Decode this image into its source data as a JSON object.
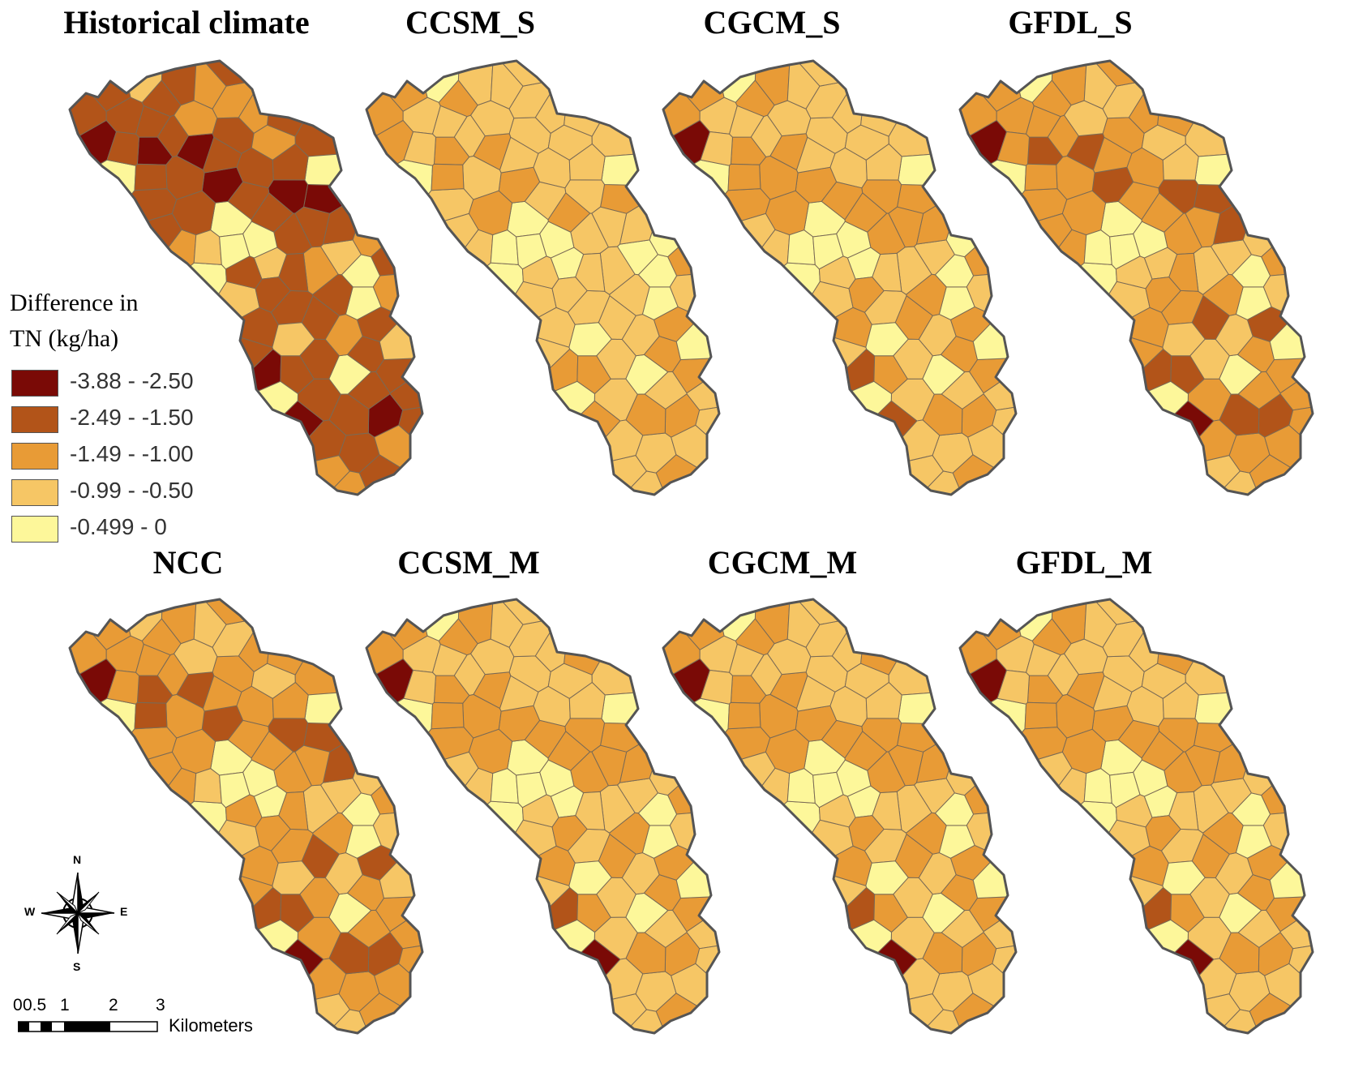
{
  "figure": {
    "panels": [
      {
        "title": "Historical climate",
        "classes": [
          0,
          1,
          0,
          1,
          0,
          2,
          1,
          0,
          1,
          0,
          1,
          4,
          4,
          2,
          3,
          1,
          3,
          4,
          4,
          3,
          0,
          1,
          0,
          1,
          1,
          0,
          1,
          2,
          1,
          2,
          4,
          1,
          1,
          2,
          1,
          1,
          4,
          2,
          1,
          1,
          2,
          1,
          1,
          1,
          1,
          1,
          1,
          1,
          0,
          1,
          2,
          3,
          1,
          3,
          4,
          2,
          3,
          4,
          4,
          1,
          1,
          1,
          2,
          1,
          2,
          2,
          4,
          3,
          1,
          1,
          1,
          1,
          1,
          1,
          1,
          1,
          1,
          1,
          1,
          1,
          1,
          1,
          2,
          1,
          1,
          1
        ]
      },
      {
        "title": "CCSM_S",
        "classes": [
          2,
          3,
          2,
          3,
          2,
          3,
          3,
          2,
          3,
          3,
          3,
          4,
          4,
          3,
          3,
          3,
          4,
          4,
          4,
          4,
          2,
          2,
          2,
          3,
          2,
          2,
          2,
          3,
          3,
          3,
          4,
          3,
          2,
          3,
          3,
          3,
          4,
          3,
          2,
          3,
          3,
          2,
          2,
          2,
          2,
          2,
          2,
          2,
          2,
          3,
          3,
          4,
          3,
          4,
          4,
          4,
          4,
          4,
          4,
          3,
          3,
          3,
          3,
          3,
          3,
          3,
          4,
          4,
          3,
          3,
          3,
          3,
          3,
          3,
          3,
          3,
          3,
          3,
          2,
          3,
          3,
          3,
          3,
          3,
          3,
          3
        ]
      },
      {
        "title": "CGCM_S",
        "classes": [
          2,
          3,
          1,
          3,
          2,
          3,
          3,
          1,
          3,
          2,
          3,
          4,
          4,
          3,
          3,
          3,
          4,
          4,
          4,
          3,
          0,
          2,
          2,
          2,
          2,
          2,
          2,
          3,
          2,
          3,
          4,
          2,
          2,
          3,
          2,
          2,
          4,
          3,
          2,
          2,
          3,
          2,
          2,
          2,
          2,
          2,
          2,
          2,
          2,
          2,
          3,
          4,
          3,
          4,
          4,
          4,
          4,
          4,
          4,
          3,
          2,
          3,
          3,
          3,
          3,
          3,
          4,
          4,
          2,
          3,
          2,
          3,
          3,
          3,
          3,
          3,
          3,
          3,
          2,
          2,
          3,
          3,
          3,
          3,
          3,
          3
        ]
      },
      {
        "title": "GFDL_S",
        "classes": [
          1,
          2,
          1,
          2,
          1,
          3,
          2,
          0,
          2,
          1,
          2,
          4,
          4,
          3,
          3,
          2,
          3,
          4,
          4,
          3,
          0,
          1,
          1,
          1,
          1,
          1,
          1,
          2,
          1,
          2,
          4,
          2,
          2,
          3,
          2,
          2,
          4,
          3,
          2,
          2,
          3,
          2,
          2,
          2,
          2,
          2,
          2,
          2,
          1,
          2,
          3,
          4,
          3,
          4,
          4,
          3,
          3,
          4,
          4,
          2,
          2,
          3,
          3,
          3,
          3,
          3,
          4,
          4,
          2,
          2,
          2,
          2,
          2,
          2,
          2,
          2,
          2,
          2,
          2,
          2,
          2,
          3,
          2,
          2,
          2,
          2
        ]
      },
      {
        "title": "NCC",
        "classes": [
          1,
          2,
          1,
          2,
          1,
          3,
          2,
          0,
          2,
          1,
          2,
          4,
          4,
          3,
          3,
          2,
          4,
          4,
          4,
          3,
          0,
          1,
          1,
          1,
          1,
          1,
          1,
          2,
          1,
          2,
          4,
          2,
          2,
          3,
          2,
          2,
          4,
          3,
          2,
          2,
          3,
          2,
          2,
          2,
          2,
          2,
          2,
          2,
          1,
          2,
          3,
          3,
          2,
          3,
          4,
          3,
          3,
          4,
          4,
          2,
          2,
          2,
          3,
          2,
          3,
          3,
          4,
          3,
          2,
          2,
          2,
          2,
          2,
          2,
          2,
          2,
          2,
          2,
          1,
          2,
          2,
          2,
          2,
          2,
          2,
          2
        ]
      },
      {
        "title": "CCSM_M",
        "classes": [
          2,
          3,
          1,
          3,
          2,
          3,
          3,
          0,
          3,
          2,
          3,
          4,
          4,
          3,
          3,
          3,
          4,
          4,
          4,
          3,
          0,
          2,
          2,
          2,
          2,
          2,
          2,
          3,
          2,
          3,
          4,
          2,
          2,
          3,
          2,
          2,
          4,
          3,
          2,
          2,
          3,
          2,
          2,
          2,
          2,
          2,
          2,
          2,
          2,
          2,
          3,
          4,
          3,
          4,
          4,
          3,
          4,
          4,
          4,
          3,
          2,
          3,
          3,
          3,
          3,
          3,
          4,
          4,
          2,
          2,
          2,
          3,
          3,
          3,
          3,
          3,
          3,
          3,
          2,
          2,
          3,
          3,
          3,
          3,
          3,
          3
        ]
      },
      {
        "title": "CGCM_M",
        "classes": [
          2,
          3,
          1,
          3,
          2,
          3,
          3,
          0,
          3,
          2,
          3,
          4,
          4,
          3,
          3,
          3,
          4,
          4,
          4,
          3,
          0,
          2,
          2,
          2,
          2,
          2,
          2,
          3,
          2,
          3,
          4,
          2,
          2,
          3,
          2,
          2,
          4,
          3,
          2,
          2,
          3,
          2,
          2,
          2,
          2,
          2,
          2,
          2,
          2,
          2,
          3,
          4,
          3,
          4,
          4,
          3,
          4,
          4,
          4,
          3,
          2,
          3,
          3,
          3,
          3,
          3,
          4,
          4,
          2,
          2,
          2,
          3,
          3,
          3,
          3,
          3,
          3,
          3,
          2,
          2,
          3,
          3,
          3,
          3,
          3,
          3
        ]
      },
      {
        "title": "GFDL_M",
        "classes": [
          2,
          3,
          1,
          3,
          2,
          3,
          3,
          0,
          3,
          2,
          3,
          4,
          4,
          3,
          3,
          3,
          4,
          4,
          4,
          3,
          0,
          2,
          2,
          2,
          2,
          2,
          2,
          3,
          2,
          3,
          4,
          2,
          2,
          3,
          2,
          2,
          4,
          3,
          2,
          2,
          3,
          2,
          2,
          2,
          2,
          2,
          2,
          2,
          2,
          2,
          3,
          4,
          3,
          4,
          4,
          3,
          4,
          4,
          4,
          3,
          2,
          3,
          3,
          3,
          3,
          3,
          4,
          4,
          2,
          2,
          2,
          3,
          3,
          3,
          3,
          3,
          3,
          3,
          2,
          2,
          3,
          3,
          3,
          3,
          3,
          3
        ]
      }
    ]
  },
  "legend": {
    "title_line1": "Difference in",
    "title_line2": "TN (kg/ha)",
    "classes": [
      {
        "label": "-3.88 - -2.50",
        "color": "#7a0a06"
      },
      {
        "label": "-2.49 - -1.50",
        "color": "#b25419"
      },
      {
        "label": "-1.49 - -1.00",
        "color": "#e89b36"
      },
      {
        "label": "-0.99 - -0.50",
        "color": "#f6c665"
      },
      {
        "label": "-0.499 - 0",
        "color": "#fdf79a"
      }
    ]
  },
  "compass": {
    "n": "N",
    "s": "S",
    "e": "E",
    "w": "W"
  },
  "scale": {
    "ticks": [
      "0",
      "0.5",
      "1",
      "2",
      "3"
    ],
    "unit": "Kilometers"
  }
}
